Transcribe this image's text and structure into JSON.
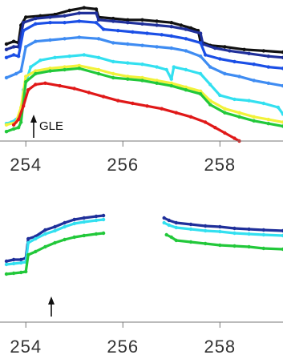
{
  "chart_data": [
    {
      "type": "scatter",
      "panel": "top",
      "xlim": [
        253.6,
        259.3
      ],
      "ylim": [
        0,
        1
      ],
      "x_ticks": [
        254,
        256,
        258
      ],
      "x_tick_labels": [
        "254",
        "256",
        "258"
      ],
      "annotation": {
        "label": "GLE",
        "x": 254.05
      },
      "colors": {
        "black": "#111111",
        "darkblue": "#1f2f9a",
        "blue": "#1b4fe6",
        "lightblue": "#3f8cf2",
        "cyan": "#33e0f0",
        "yellow": "#f2f23a",
        "green": "#22c83a",
        "red": "#e01818"
      },
      "series": [
        {
          "color": "black",
          "points": [
            [
              253.6,
              0.72
            ],
            [
              253.75,
              0.74
            ],
            [
              253.85,
              0.73
            ],
            [
              253.9,
              0.86
            ],
            [
              254.0,
              0.92
            ],
            [
              254.3,
              0.93
            ],
            [
              254.6,
              0.94
            ],
            [
              254.9,
              0.97
            ],
            [
              255.2,
              0.99
            ],
            [
              255.45,
              0.98
            ],
            [
              255.5,
              0.92
            ],
            [
              255.8,
              0.91
            ],
            [
              256.1,
              0.9
            ],
            [
              256.4,
              0.9
            ],
            [
              256.7,
              0.89
            ],
            [
              257.0,
              0.88
            ],
            [
              257.2,
              0.86
            ],
            [
              257.4,
              0.84
            ],
            [
              257.55,
              0.82
            ],
            [
              257.6,
              0.74
            ],
            [
              257.8,
              0.71
            ],
            [
              258.1,
              0.7
            ],
            [
              258.5,
              0.68
            ],
            [
              258.9,
              0.67
            ],
            [
              259.3,
              0.66
            ]
          ]
        },
        {
          "color": "darkblue",
          "points": [
            [
              253.6,
              0.68
            ],
            [
              253.75,
              0.7
            ],
            [
              253.85,
              0.7
            ],
            [
              253.95,
              0.88
            ],
            [
              254.2,
              0.91
            ],
            [
              254.5,
              0.92
            ],
            [
              254.8,
              0.93
            ],
            [
              255.1,
              0.95
            ],
            [
              255.45,
              0.95
            ],
            [
              255.5,
              0.9
            ],
            [
              255.8,
              0.89
            ],
            [
              256.1,
              0.88
            ],
            [
              256.4,
              0.87
            ],
            [
              256.7,
              0.86
            ],
            [
              257.0,
              0.85
            ],
            [
              257.3,
              0.83
            ],
            [
              257.6,
              0.8
            ],
            [
              257.65,
              0.72
            ],
            [
              257.9,
              0.69
            ],
            [
              258.2,
              0.67
            ],
            [
              258.6,
              0.65
            ],
            [
              259.0,
              0.63
            ],
            [
              259.3,
              0.62
            ]
          ]
        },
        {
          "color": "blue",
          "points": [
            [
              253.6,
              0.62
            ],
            [
              253.75,
              0.64
            ],
            [
              253.85,
              0.63
            ],
            [
              253.95,
              0.82
            ],
            [
              254.2,
              0.87
            ],
            [
              254.5,
              0.88
            ],
            [
              254.8,
              0.88
            ],
            [
              255.1,
              0.89
            ],
            [
              255.45,
              0.88
            ],
            [
              255.6,
              0.83
            ],
            [
              255.9,
              0.82
            ],
            [
              256.2,
              0.81
            ],
            [
              256.5,
              0.8
            ],
            [
              256.8,
              0.79
            ],
            [
              257.0,
              0.78
            ],
            [
              257.3,
              0.76
            ],
            [
              257.6,
              0.73
            ],
            [
              257.7,
              0.64
            ],
            [
              258.0,
              0.61
            ],
            [
              258.3,
              0.59
            ],
            [
              258.7,
              0.57
            ],
            [
              259.0,
              0.55
            ],
            [
              259.3,
              0.54
            ]
          ]
        },
        {
          "color": "lightblue",
          "points": [
            [
              253.6,
              0.47
            ],
            [
              253.8,
              0.5
            ],
            [
              253.9,
              0.52
            ],
            [
              254.0,
              0.7
            ],
            [
              254.2,
              0.74
            ],
            [
              254.5,
              0.75
            ],
            [
              254.8,
              0.76
            ],
            [
              255.1,
              0.77
            ],
            [
              255.5,
              0.76
            ],
            [
              255.8,
              0.73
            ],
            [
              256.1,
              0.72
            ],
            [
              256.4,
              0.71
            ],
            [
              256.7,
              0.7
            ],
            [
              257.0,
              0.69
            ],
            [
              257.3,
              0.67
            ],
            [
              257.6,
              0.63
            ],
            [
              257.8,
              0.55
            ],
            [
              258.1,
              0.5
            ],
            [
              258.4,
              0.48
            ],
            [
              258.7,
              0.45
            ],
            [
              259.0,
              0.43
            ],
            [
              259.3,
              0.41
            ]
          ]
        },
        {
          "color": "cyan",
          "points": [
            [
              253.6,
              0.13
            ],
            [
              253.7,
              0.14
            ],
            [
              253.8,
              0.16
            ],
            [
              253.9,
              0.2
            ],
            [
              253.95,
              0.38
            ],
            [
              254.1,
              0.55
            ],
            [
              254.3,
              0.6
            ],
            [
              254.6,
              0.62
            ],
            [
              254.9,
              0.63
            ],
            [
              255.2,
              0.64
            ],
            [
              255.5,
              0.62
            ],
            [
              255.8,
              0.59
            ],
            [
              256.1,
              0.58
            ],
            [
              256.4,
              0.57
            ],
            [
              256.7,
              0.55
            ],
            [
              256.9,
              0.53
            ],
            [
              257.0,
              0.46
            ],
            [
              257.05,
              0.55
            ],
            [
              257.3,
              0.53
            ],
            [
              257.6,
              0.5
            ],
            [
              257.8,
              0.42
            ],
            [
              258.0,
              0.34
            ],
            [
              258.3,
              0.31
            ],
            [
              258.6,
              0.3
            ],
            [
              258.9,
              0.28
            ],
            [
              259.2,
              0.25
            ],
            [
              259.3,
              0.2
            ]
          ]
        },
        {
          "color": "yellow",
          "points": [
            [
              253.6,
              0.12
            ],
            [
              253.8,
              0.14
            ],
            [
              253.9,
              0.25
            ],
            [
              254.0,
              0.48
            ],
            [
              254.2,
              0.52
            ],
            [
              254.5,
              0.54
            ],
            [
              254.8,
              0.55
            ],
            [
              255.1,
              0.56
            ],
            [
              255.5,
              0.53
            ],
            [
              255.8,
              0.5
            ],
            [
              256.1,
              0.48
            ],
            [
              256.4,
              0.47
            ],
            [
              256.7,
              0.45
            ],
            [
              257.0,
              0.43
            ],
            [
              257.3,
              0.4
            ],
            [
              257.6,
              0.37
            ],
            [
              257.8,
              0.3
            ],
            [
              258.1,
              0.24
            ],
            [
              258.4,
              0.21
            ],
            [
              258.7,
              0.18
            ],
            [
              259.0,
              0.16
            ],
            [
              259.3,
              0.14
            ]
          ]
        },
        {
          "color": "green",
          "points": [
            [
              253.6,
              0.07
            ],
            [
              253.75,
              0.09
            ],
            [
              253.85,
              0.1
            ],
            [
              253.9,
              0.14
            ],
            [
              254.0,
              0.44
            ],
            [
              254.2,
              0.5
            ],
            [
              254.5,
              0.52
            ],
            [
              254.8,
              0.53
            ],
            [
              255.1,
              0.54
            ],
            [
              255.5,
              0.5
            ],
            [
              255.8,
              0.47
            ],
            [
              256.1,
              0.46
            ],
            [
              256.4,
              0.45
            ],
            [
              256.7,
              0.43
            ],
            [
              257.0,
              0.41
            ],
            [
              257.3,
              0.38
            ],
            [
              257.6,
              0.35
            ],
            [
              257.8,
              0.27
            ],
            [
              258.1,
              0.21
            ],
            [
              258.4,
              0.18
            ],
            [
              258.7,
              0.15
            ],
            [
              259.0,
              0.13
            ],
            [
              259.3,
              0.11
            ]
          ]
        },
        {
          "color": "red",
          "points": [
            [
              253.75,
              0.12
            ],
            [
              253.85,
              0.16
            ],
            [
              253.95,
              0.26
            ],
            [
              254.05,
              0.38
            ],
            [
              254.2,
              0.42
            ],
            [
              254.4,
              0.43
            ],
            [
              254.7,
              0.41
            ],
            [
              255.0,
              0.39
            ],
            [
              255.3,
              0.36
            ],
            [
              255.6,
              0.33
            ],
            [
              255.9,
              0.3
            ],
            [
              256.2,
              0.28
            ],
            [
              256.5,
              0.26
            ],
            [
              256.8,
              0.24
            ],
            [
              257.1,
              0.21
            ],
            [
              257.4,
              0.18
            ],
            [
              257.7,
              0.14
            ],
            [
              257.9,
              0.1
            ],
            [
              258.1,
              0.06
            ],
            [
              258.3,
              0.02
            ],
            [
              258.4,
              0.0
            ]
          ]
        }
      ]
    },
    {
      "type": "scatter",
      "panel": "bottom",
      "xlim": [
        253.6,
        259.3
      ],
      "ylim": [
        0,
        1
      ],
      "x_ticks": [
        254,
        256,
        258
      ],
      "x_tick_labels": [
        "254",
        "256",
        "258"
      ],
      "annotation": {
        "label": "",
        "x": 254.05
      },
      "colors": {
        "darkblue": "#1f2f9a",
        "cyan": "#33e0f0",
        "green": "#22c83a"
      },
      "series": [
        {
          "color": "darkblue",
          "points": [
            [
              253.6,
              0.32
            ],
            [
              253.75,
              0.34
            ],
            [
              253.9,
              0.34
            ],
            [
              254.0,
              0.36
            ],
            [
              254.05,
              0.6
            ],
            [
              254.2,
              0.63
            ],
            [
              254.4,
              0.71
            ],
            [
              254.6,
              0.75
            ],
            [
              254.8,
              0.8
            ],
            [
              255.0,
              0.84
            ],
            [
              255.2,
              0.86
            ],
            [
              255.45,
              0.88
            ],
            [
              255.6,
              0.89
            ],
            [
              256.85,
              0.86
            ],
            [
              256.95,
              0.83
            ],
            [
              257.1,
              0.8
            ],
            [
              257.4,
              0.78
            ],
            [
              257.7,
              0.76
            ],
            [
              258.0,
              0.75
            ],
            [
              258.3,
              0.73
            ],
            [
              258.6,
              0.72
            ],
            [
              258.9,
              0.71
            ],
            [
              259.3,
              0.7
            ]
          ]
        },
        {
          "color": "cyan",
          "points": [
            [
              253.6,
              0.28
            ],
            [
              253.75,
              0.29
            ],
            [
              253.9,
              0.3
            ],
            [
              254.0,
              0.31
            ],
            [
              254.05,
              0.55
            ],
            [
              254.2,
              0.6
            ],
            [
              254.4,
              0.66
            ],
            [
              254.6,
              0.7
            ],
            [
              254.8,
              0.75
            ],
            [
              255.0,
              0.79
            ],
            [
              255.2,
              0.81
            ],
            [
              255.45,
              0.83
            ],
            [
              255.6,
              0.84
            ],
            [
              256.85,
              0.8
            ],
            [
              256.95,
              0.77
            ],
            [
              257.1,
              0.74
            ],
            [
              257.4,
              0.72
            ],
            [
              257.7,
              0.7
            ],
            [
              258.0,
              0.69
            ],
            [
              258.3,
              0.67
            ],
            [
              258.6,
              0.66
            ],
            [
              258.9,
              0.65
            ],
            [
              259.3,
              0.64
            ]
          ]
        },
        {
          "color": "green",
          "points": [
            [
              253.6,
              0.16
            ],
            [
              253.75,
              0.17
            ],
            [
              253.9,
              0.18
            ],
            [
              254.0,
              0.19
            ],
            [
              254.05,
              0.4
            ],
            [
              254.2,
              0.44
            ],
            [
              254.4,
              0.5
            ],
            [
              254.6,
              0.55
            ],
            [
              254.8,
              0.59
            ],
            [
              255.0,
              0.62
            ],
            [
              255.2,
              0.64
            ],
            [
              255.45,
              0.66
            ],
            [
              255.6,
              0.67
            ],
            [
              256.9,
              0.65
            ],
            [
              257.0,
              0.62
            ],
            [
              257.1,
              0.58
            ],
            [
              257.4,
              0.56
            ],
            [
              257.7,
              0.54
            ],
            [
              258.0,
              0.52
            ],
            [
              258.3,
              0.51
            ],
            [
              258.6,
              0.5
            ],
            [
              258.9,
              0.48
            ],
            [
              259.3,
              0.47
            ]
          ]
        }
      ]
    }
  ]
}
